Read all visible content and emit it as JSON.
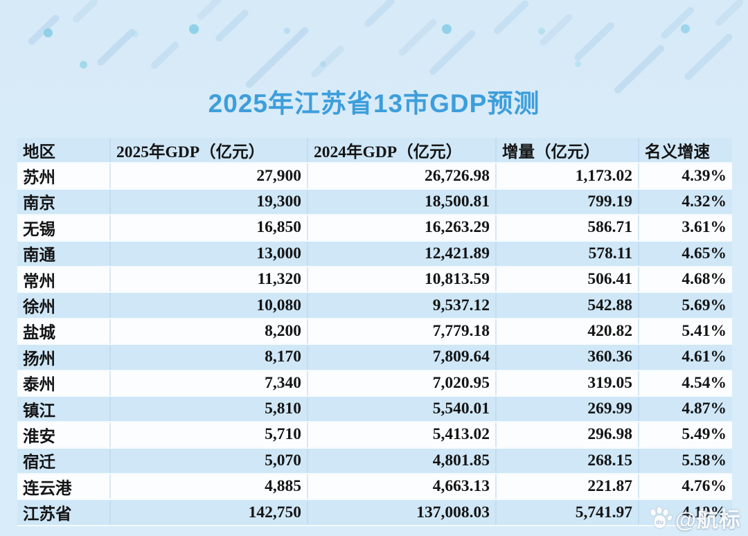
{
  "page": {
    "title": "2025年江苏省13市GDP预测",
    "background_color": "#d9ecf9",
    "title_color": "#3d9edb",
    "row_blue_color": "#cfe7f7",
    "row_white_color": "#fcfdff",
    "text_color": "#141414"
  },
  "watermark": {
    "icon": "baidu-paw-icon",
    "text": "@航标"
  },
  "table": {
    "columns": [
      "地区",
      "2025年GDP（亿元）",
      "2024年GDP（亿元）",
      "增量（亿元）",
      "名义增速"
    ],
    "rows": [
      [
        "苏州",
        "27,900",
        "26,726.98",
        "1,173.02",
        "4.39%"
      ],
      [
        "南京",
        "19,300",
        "18,500.81",
        "799.19",
        "4.32%"
      ],
      [
        "无锡",
        "16,850",
        "16,263.29",
        "586.71",
        "3.61%"
      ],
      [
        "南通",
        "13,000",
        "12,421.89",
        "578.11",
        "4.65%"
      ],
      [
        "常州",
        "11,320",
        "10,813.59",
        "506.41",
        "4.68%"
      ],
      [
        "徐州",
        "10,080",
        "9,537.12",
        "542.88",
        "5.69%"
      ],
      [
        "盐城",
        "8,200",
        "7,779.18",
        "420.82",
        "5.41%"
      ],
      [
        "扬州",
        "8,170",
        "7,809.64",
        "360.36",
        "4.61%"
      ],
      [
        "泰州",
        "7,340",
        "7,020.95",
        "319.05",
        "4.54%"
      ],
      [
        "镇江",
        "5,810",
        "5,540.01",
        "269.99",
        "4.87%"
      ],
      [
        "淮安",
        "5,710",
        "5,413.02",
        "296.98",
        "5.49%"
      ],
      [
        "宿迁",
        "5,070",
        "4,801.85",
        "268.15",
        "5.58%"
      ],
      [
        "连云港",
        "4,885",
        "4,663.13",
        "221.87",
        "4.76%"
      ],
      [
        "江苏省",
        "142,750",
        "137,008.03",
        "5,741.97",
        "4.19%"
      ]
    ]
  },
  "chart_data": {
    "type": "table",
    "title": "2025年江苏省13市GDP预测",
    "columns": [
      "地区",
      "2025年GDP（亿元）",
      "2024年GDP（亿元）",
      "增量（亿元）",
      "名义增速"
    ],
    "rows": [
      {
        "region": "苏州",
        "gdp_2025": 27900,
        "gdp_2024": 26726.98,
        "increment": 1173.02,
        "nominal_growth_pct": 4.39
      },
      {
        "region": "南京",
        "gdp_2025": 19300,
        "gdp_2024": 18500.81,
        "increment": 799.19,
        "nominal_growth_pct": 4.32
      },
      {
        "region": "无锡",
        "gdp_2025": 16850,
        "gdp_2024": 16263.29,
        "increment": 586.71,
        "nominal_growth_pct": 3.61
      },
      {
        "region": "南通",
        "gdp_2025": 13000,
        "gdp_2024": 12421.89,
        "increment": 578.11,
        "nominal_growth_pct": 4.65
      },
      {
        "region": "常州",
        "gdp_2025": 11320,
        "gdp_2024": 10813.59,
        "increment": 506.41,
        "nominal_growth_pct": 4.68
      },
      {
        "region": "徐州",
        "gdp_2025": 10080,
        "gdp_2024": 9537.12,
        "increment": 542.88,
        "nominal_growth_pct": 5.69
      },
      {
        "region": "盐城",
        "gdp_2025": 8200,
        "gdp_2024": 7779.18,
        "increment": 420.82,
        "nominal_growth_pct": 5.41
      },
      {
        "region": "扬州",
        "gdp_2025": 8170,
        "gdp_2024": 7809.64,
        "increment": 360.36,
        "nominal_growth_pct": 4.61
      },
      {
        "region": "泰州",
        "gdp_2025": 7340,
        "gdp_2024": 7020.95,
        "increment": 319.05,
        "nominal_growth_pct": 4.54
      },
      {
        "region": "镇江",
        "gdp_2025": 5810,
        "gdp_2024": 5540.01,
        "increment": 269.99,
        "nominal_growth_pct": 4.87
      },
      {
        "region": "淮安",
        "gdp_2025": 5710,
        "gdp_2024": 5413.02,
        "increment": 296.98,
        "nominal_growth_pct": 5.49
      },
      {
        "region": "宿迁",
        "gdp_2025": 5070,
        "gdp_2024": 4801.85,
        "increment": 268.15,
        "nominal_growth_pct": 5.58
      },
      {
        "region": "连云港",
        "gdp_2025": 4885,
        "gdp_2024": 4663.13,
        "increment": 221.87,
        "nominal_growth_pct": 4.76
      },
      {
        "region": "江苏省",
        "gdp_2025": 142750,
        "gdp_2024": 137008.03,
        "increment": 5741.97,
        "nominal_growth_pct": 4.19
      }
    ]
  }
}
